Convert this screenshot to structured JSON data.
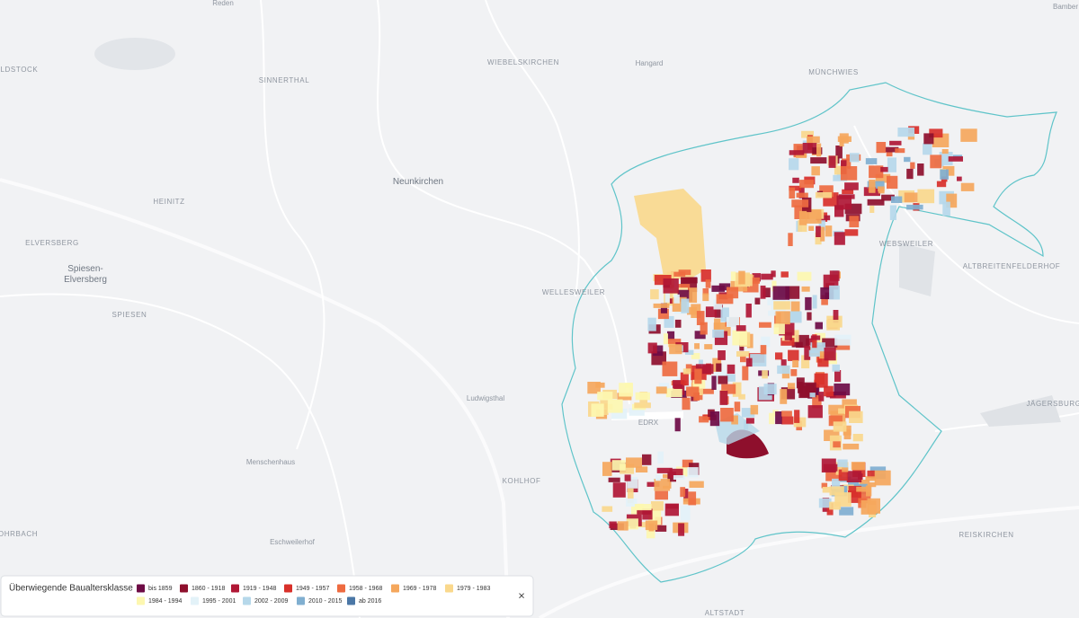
{
  "map": {
    "places": [
      "Reden",
      "Bamber",
      "OLDSTOCK",
      "WIEBELSKIRCHEN",
      "Hangard",
      "MÜNCHWIES",
      "SINNERTHAL",
      "Neunkirchen",
      "HEINITZ",
      "ELVERSBERG",
      "Spiesen-",
      "Elversberg",
      "SPIESEN",
      "WELLESWEILER",
      "WEBSWEILER",
      "ALTBREITENFELDERHOF",
      "Ludwigsthal",
      "EDRX",
      "Menschenhaus",
      "KOHLHOF",
      "JÄGERSBURG",
      "REISKIRCHEN",
      "OHRBACH",
      "Eschweilerhof",
      "ALTSTADT"
    ],
    "legend": {
      "title": "Überwiegende Baualtersklasse",
      "items": [
        {
          "label": "bis 1859",
          "color": "#6e0b45"
        },
        {
          "label": "1860 - 1918",
          "color": "#8e0f2c"
        },
        {
          "label": "1919 - 1948",
          "color": "#b01735"
        },
        {
          "label": "1949 - 1957",
          "color": "#d8302a"
        },
        {
          "label": "1958 - 1968",
          "color": "#ee6b40"
        },
        {
          "label": "1969 - 1978",
          "color": "#f5a75c"
        },
        {
          "label": "1979 - 1983",
          "color": "#fad88c"
        },
        {
          "label": "1984 - 1994",
          "color": "#fdf7b0"
        },
        {
          "label": "1995 - 2001",
          "color": "#e3f2f8"
        },
        {
          "label": "2002 - 2009",
          "color": "#b6d8ea"
        },
        {
          "label": "2010 - 2015",
          "color": "#80afd0"
        },
        {
          "label": "ab 2016",
          "color": "#4b77a6"
        }
      ],
      "close": "×"
    }
  }
}
